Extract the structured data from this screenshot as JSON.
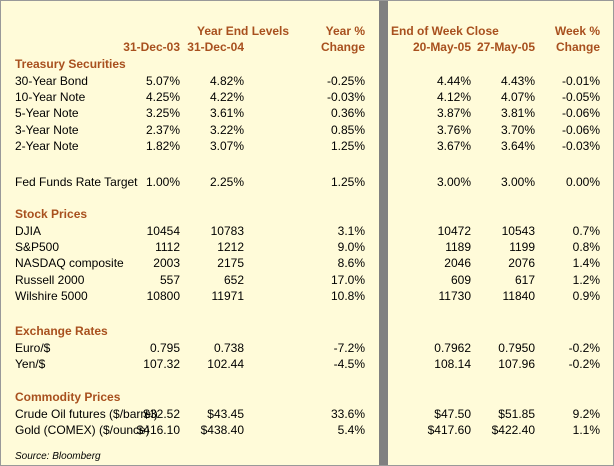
{
  "header": {
    "year_end_levels": "Year End Levels",
    "date_2003": "31-Dec-03",
    "date_2004": "31-Dec-04",
    "year_pct": "Year %",
    "year_change": "Change",
    "end_of_week_close": "End of Week Close",
    "date_may20": "20-May-05",
    "date_may27": "27-May-05",
    "week_pct": "Week %",
    "week_change": "Change"
  },
  "sections": [
    {
      "title": "Treasury Securities",
      "rows": [
        {
          "label": "30-Year Bond",
          "c1": "5.07%",
          "c2": "4.82%",
          "c3": "-0.25%",
          "c4": "4.44%",
          "c5": "4.43%",
          "c6": "-0.01%"
        },
        {
          "label": "10-Year Note",
          "c1": "4.25%",
          "c2": "4.22%",
          "c3": "-0.03%",
          "c4": "4.12%",
          "c5": "4.07%",
          "c6": "-0.05%"
        },
        {
          "label": "5-Year Note",
          "c1": "3.25%",
          "c2": "3.61%",
          "c3": "0.36%",
          "c4": "3.87%",
          "c5": "3.81%",
          "c6": "-0.06%"
        },
        {
          "label": "3-Year Note",
          "c1": "2.37%",
          "c2": "3.22%",
          "c3": "0.85%",
          "c4": "3.76%",
          "c5": "3.70%",
          "c6": "-0.06%"
        },
        {
          "label": "2-Year Note",
          "c1": "1.82%",
          "c2": "3.07%",
          "c3": "1.25%",
          "c4": "3.67%",
          "c5": "3.64%",
          "c6": "-0.03%"
        }
      ]
    },
    {
      "title": "",
      "rows": [
        {
          "label": "Fed Funds Rate Target",
          "c1": "1.00%",
          "c2": "2.25%",
          "c3": "1.25%",
          "c4": "3.00%",
          "c5": "3.00%",
          "c6": "0.00%"
        }
      ]
    },
    {
      "title": "Stock Prices",
      "rows": [
        {
          "label": "DJIA",
          "c1": "10454",
          "c2": "10783",
          "c3": "3.1%",
          "c4": "10472",
          "c5": "10543",
          "c6": "0.7%"
        },
        {
          "label": "S&P500",
          "c1": "1112",
          "c2": "1212",
          "c3": "9.0%",
          "c4": "1189",
          "c5": "1199",
          "c6": "0.8%"
        },
        {
          "label": "NASDAQ composite",
          "c1": "2003",
          "c2": "2175",
          "c3": "8.6%",
          "c4": "2046",
          "c5": "2076",
          "c6": "1.4%"
        },
        {
          "label": "Russell 2000",
          "c1": "557",
          "c2": "652",
          "c3": "17.0%",
          "c4": "609",
          "c5": "617",
          "c6": "1.2%"
        },
        {
          "label": "Wilshire 5000",
          "c1": "10800",
          "c2": "11971",
          "c3": "10.8%",
          "c4": "11730",
          "c5": "11840",
          "c6": "0.9%"
        }
      ]
    },
    {
      "title": "Exchange Rates",
      "rows": [
        {
          "label": "Euro/$",
          "c1": "0.795",
          "c2": "0.738",
          "c3": "-7.2%",
          "c4": "0.7962",
          "c5": "0.7950",
          "c6": "-0.2%"
        },
        {
          "label": "Yen/$",
          "c1": "107.32",
          "c2": "102.44",
          "c3": "-4.5%",
          "c4": "108.14",
          "c5": "107.96",
          "c6": "-0.2%"
        }
      ]
    },
    {
      "title": "Commodity Prices",
      "rows": [
        {
          "label": "Crude Oil futures ($/barrel)",
          "c1": "$32.52",
          "c2": "$43.45",
          "c3": "33.6%",
          "c4": "$47.50",
          "c5": "$51.85",
          "c6": "9.2%"
        },
        {
          "label": "Gold (COMEX) ($/ounce)",
          "c1": "$416.10",
          "c2": "$438.40",
          "c3": "5.4%",
          "c4": "$417.60",
          "c5": "$422.40",
          "c6": "1.1%"
        }
      ]
    }
  ],
  "source": "Source: Bloomberg",
  "colors": {
    "background": "#fffbd9",
    "heading": "#a8501e",
    "divider": "#808080"
  }
}
